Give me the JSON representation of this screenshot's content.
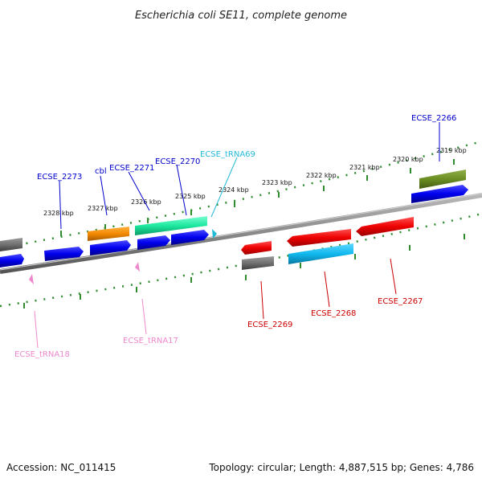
{
  "title": "Escherichia coli SE11, complete genome",
  "footer": {
    "accession": "Accession: NC_011415",
    "topology": "Topology: circular; Length: 4,887,515 bp; Genes: 4,786"
  },
  "colors": {
    "backbone": "#8a8a8a",
    "tick": "#2e8b2e",
    "label_blue": "#0000cc",
    "label_red": "#cc0000",
    "label_cyan": "#22b8d8",
    "label_pink": "#ee88cc"
  },
  "scale_ticks": [
    "2328 kbp",
    "2327 kbp",
    "2326 kbp",
    "2325 kbp",
    "2324 kbp",
    "2323 kbp",
    "2322 kbp",
    "2321 kbp",
    "2320 kbp",
    "2319 kbp"
  ],
  "labels": [
    {
      "text": "ECSE_2266",
      "color": "blue"
    },
    {
      "text": "ECSE_tRNA69",
      "color": "cyan"
    },
    {
      "text": "ECSE_2270",
      "color": "blue"
    },
    {
      "text": "ECSE_2271",
      "color": "blue"
    },
    {
      "text": "cbl",
      "color": "blue"
    },
    {
      "text": "ECSE_2273",
      "color": "blue"
    },
    {
      "text": "ECSE_2269",
      "color": "red"
    },
    {
      "text": "ECSE_2268",
      "color": "red"
    },
    {
      "text": "ECSE_2267",
      "color": "red"
    },
    {
      "text": "ECSE_tRNA17",
      "color": "pink"
    },
    {
      "text": "ECSE_tRNA18",
      "color": "pink"
    }
  ]
}
